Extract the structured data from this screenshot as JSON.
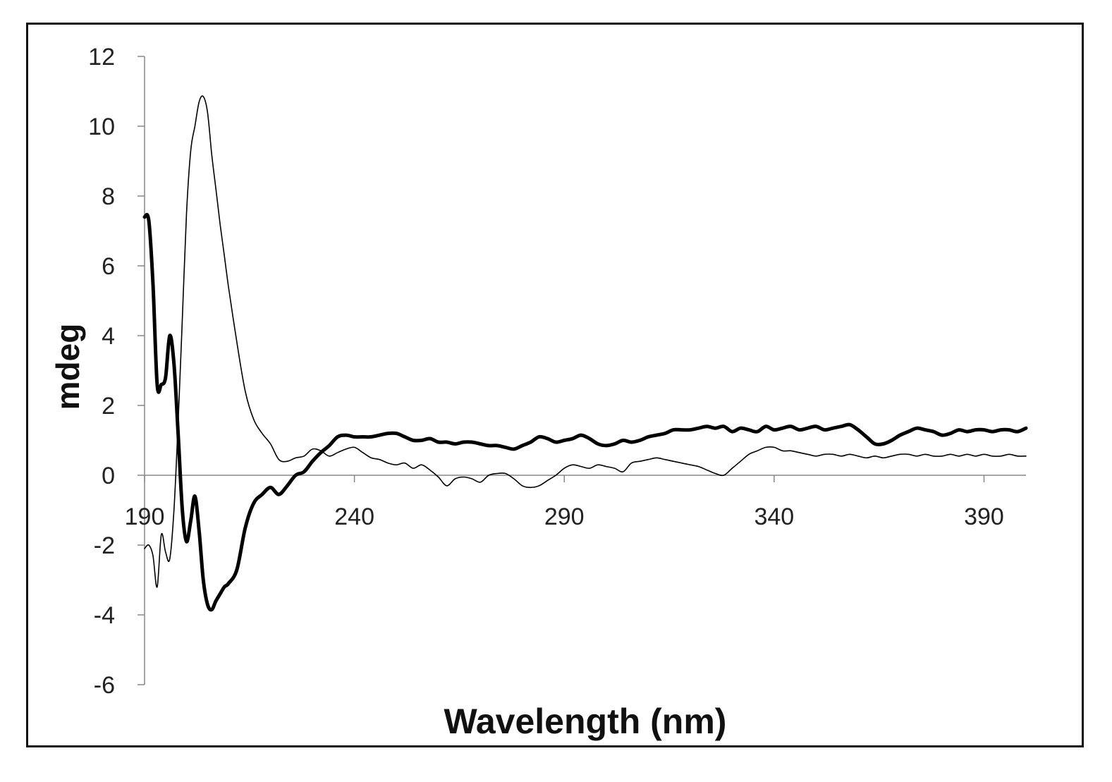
{
  "chart_data": {
    "type": "line",
    "title": "",
    "xlabel": "Wavelength (nm)",
    "ylabel": "mdeg",
    "xlim": [
      190,
      400
    ],
    "ylim": [
      -6,
      12
    ],
    "x_ticks": [
      190,
      240,
      290,
      340,
      390
    ],
    "y_ticks": [
      12,
      10,
      8,
      6,
      4,
      2,
      0,
      -2,
      -4,
      -6
    ],
    "grid": false,
    "legend": "none",
    "series": [
      {
        "style": "thick",
        "color": "#000000",
        "x": [
          190,
          191,
          192,
          193,
          194,
          195,
          196,
          197,
          198,
          199,
          200,
          201,
          202,
          203,
          204,
          205,
          206,
          207,
          208,
          209,
          210,
          212,
          214,
          216,
          218,
          220,
          222,
          224,
          226,
          228,
          230,
          232,
          234,
          236,
          238,
          240,
          242,
          244,
          246,
          248,
          250,
          252,
          254,
          256,
          258,
          260,
          262,
          264,
          266,
          268,
          270,
          272,
          274,
          276,
          278,
          280,
          282,
          284,
          286,
          288,
          290,
          292,
          294,
          296,
          298,
          300,
          302,
          304,
          306,
          308,
          310,
          312,
          314,
          316,
          318,
          320,
          322,
          324,
          326,
          328,
          330,
          332,
          334,
          336,
          338,
          340,
          342,
          344,
          346,
          348,
          350,
          352,
          354,
          356,
          358,
          360,
          362,
          364,
          366,
          368,
          370,
          372,
          374,
          376,
          378,
          380,
          382,
          384,
          386,
          388,
          390,
          392,
          394,
          396,
          398,
          400
        ],
        "values": [
          7.4,
          7.3,
          5.5,
          2.6,
          2.6,
          2.8,
          4.0,
          3.2,
          1.2,
          -1.0,
          -1.9,
          -1.3,
          -0.6,
          -1.6,
          -3.0,
          -3.7,
          -3.85,
          -3.6,
          -3.4,
          -3.2,
          -3.1,
          -2.7,
          -1.5,
          -0.8,
          -0.55,
          -0.35,
          -0.55,
          -0.3,
          0.0,
          0.1,
          0.4,
          0.65,
          0.85,
          1.1,
          1.15,
          1.1,
          1.1,
          1.1,
          1.15,
          1.2,
          1.2,
          1.1,
          1.0,
          1.0,
          1.05,
          0.95,
          0.95,
          0.9,
          0.95,
          0.95,
          0.9,
          0.85,
          0.85,
          0.8,
          0.75,
          0.85,
          0.95,
          1.1,
          1.05,
          0.95,
          1.0,
          1.05,
          1.15,
          1.05,
          0.9,
          0.85,
          0.9,
          1.0,
          0.95,
          1.0,
          1.1,
          1.15,
          1.2,
          1.3,
          1.3,
          1.3,
          1.35,
          1.4,
          1.35,
          1.4,
          1.25,
          1.35,
          1.3,
          1.25,
          1.4,
          1.3,
          1.35,
          1.4,
          1.3,
          1.35,
          1.4,
          1.3,
          1.35,
          1.4,
          1.45,
          1.3,
          1.1,
          0.9,
          0.9,
          1.0,
          1.15,
          1.25,
          1.35,
          1.3,
          1.25,
          1.15,
          1.2,
          1.3,
          1.25,
          1.3,
          1.3,
          1.25,
          1.3,
          1.3,
          1.25,
          1.35
        ]
      },
      {
        "style": "thin",
        "color": "#000000",
        "x": [
          190,
          191,
          192,
          193,
          194,
          195,
          196,
          197,
          198,
          199,
          200,
          201,
          202,
          203,
          204,
          205,
          206,
          207,
          208,
          209,
          210,
          212,
          214,
          216,
          218,
          220,
          222,
          224,
          226,
          228,
          230,
          232,
          234,
          236,
          238,
          240,
          242,
          244,
          246,
          248,
          250,
          252,
          254,
          256,
          258,
          260,
          262,
          264,
          266,
          268,
          270,
          272,
          274,
          276,
          278,
          280,
          282,
          284,
          286,
          288,
          290,
          292,
          294,
          296,
          298,
          300,
          302,
          304,
          306,
          308,
          310,
          312,
          314,
          316,
          318,
          320,
          322,
          324,
          326,
          328,
          330,
          332,
          334,
          336,
          338,
          340,
          342,
          344,
          346,
          348,
          350,
          352,
          354,
          356,
          358,
          360,
          362,
          364,
          366,
          368,
          370,
          372,
          374,
          376,
          378,
          380,
          382,
          384,
          386,
          388,
          390,
          392,
          394,
          396,
          398,
          400
        ],
        "values": [
          -2.1,
          -2.0,
          -2.3,
          -3.2,
          -1.7,
          -2.2,
          -2.4,
          -1.0,
          1.5,
          4.5,
          7.5,
          9.3,
          10.0,
          10.7,
          10.85,
          10.4,
          9.2,
          8.2,
          7.2,
          6.3,
          5.4,
          3.8,
          2.4,
          1.6,
          1.2,
          0.9,
          0.45,
          0.4,
          0.5,
          0.55,
          0.75,
          0.7,
          0.55,
          0.65,
          0.75,
          0.8,
          0.65,
          0.5,
          0.45,
          0.35,
          0.3,
          0.35,
          0.2,
          0.3,
          0.15,
          -0.05,
          -0.3,
          -0.1,
          -0.05,
          -0.1,
          -0.2,
          0.0,
          0.05,
          0.05,
          -0.1,
          -0.3,
          -0.35,
          -0.3,
          -0.15,
          0.0,
          0.2,
          0.3,
          0.25,
          0.2,
          0.3,
          0.25,
          0.2,
          0.1,
          0.35,
          0.4,
          0.45,
          0.5,
          0.45,
          0.4,
          0.35,
          0.3,
          0.25,
          0.15,
          0.05,
          0.0,
          0.2,
          0.4,
          0.6,
          0.7,
          0.8,
          0.8,
          0.7,
          0.7,
          0.65,
          0.6,
          0.55,
          0.6,
          0.6,
          0.55,
          0.6,
          0.55,
          0.5,
          0.55,
          0.5,
          0.55,
          0.6,
          0.6,
          0.55,
          0.6,
          0.55,
          0.55,
          0.6,
          0.55,
          0.6,
          0.55,
          0.6,
          0.55,
          0.55,
          0.6,
          0.55,
          0.55
        ]
      }
    ]
  }
}
